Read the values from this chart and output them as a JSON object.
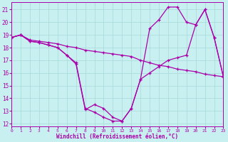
{
  "xlabel": "Windchill (Refroidissement éolien,°C)",
  "bg_color": "#c8f0f0",
  "grid_color": "#a8d8d8",
  "line_color": "#aa00aa",
  "xlim": [
    0,
    23
  ],
  "ylim": [
    11.8,
    21.6
  ],
  "yticks": [
    12,
    13,
    14,
    15,
    16,
    17,
    18,
    19,
    20,
    21
  ],
  "xticks": [
    0,
    1,
    2,
    3,
    4,
    5,
    6,
    7,
    8,
    9,
    10,
    11,
    12,
    13,
    14,
    15,
    16,
    17,
    18,
    19,
    20,
    21,
    22,
    23
  ],
  "line1_x": [
    0,
    1,
    2,
    3,
    4,
    5,
    6,
    7,
    8,
    9,
    10,
    11,
    12,
    13,
    14,
    15,
    16,
    17,
    18,
    19,
    20,
    21,
    22,
    23
  ],
  "line1_y": [
    18.8,
    19.0,
    18.6,
    18.5,
    18.4,
    18.3,
    18.1,
    18.0,
    17.8,
    17.7,
    17.6,
    17.5,
    17.4,
    17.3,
    17.0,
    16.8,
    16.6,
    16.5,
    16.3,
    16.2,
    16.1,
    15.9,
    15.8,
    15.7
  ],
  "line2_x": [
    0,
    1,
    2,
    3,
    4,
    5,
    6,
    7,
    8,
    9,
    10,
    11,
    12,
    13,
    14,
    15,
    16,
    17,
    18,
    19,
    20,
    21,
    22,
    23
  ],
  "line2_y": [
    18.8,
    19.0,
    18.5,
    18.4,
    18.2,
    18.0,
    17.4,
    16.8,
    13.2,
    12.9,
    12.5,
    12.2,
    12.2,
    13.2,
    15.5,
    19.5,
    20.2,
    21.2,
    21.2,
    20.0,
    19.8,
    21.0,
    18.8,
    15.7
  ],
  "line3_x": [
    0,
    1,
    2,
    3,
    4,
    5,
    6,
    7,
    8,
    9,
    10,
    11,
    12,
    13,
    14,
    15,
    16,
    17,
    18,
    19,
    20,
    21,
    22,
    23
  ],
  "line3_y": [
    18.8,
    19.0,
    18.5,
    18.4,
    18.2,
    18.0,
    17.4,
    16.7,
    13.1,
    13.5,
    13.2,
    12.5,
    12.2,
    13.2,
    15.5,
    16.0,
    16.5,
    17.0,
    17.2,
    17.4,
    19.8,
    21.0,
    18.8,
    15.7
  ]
}
